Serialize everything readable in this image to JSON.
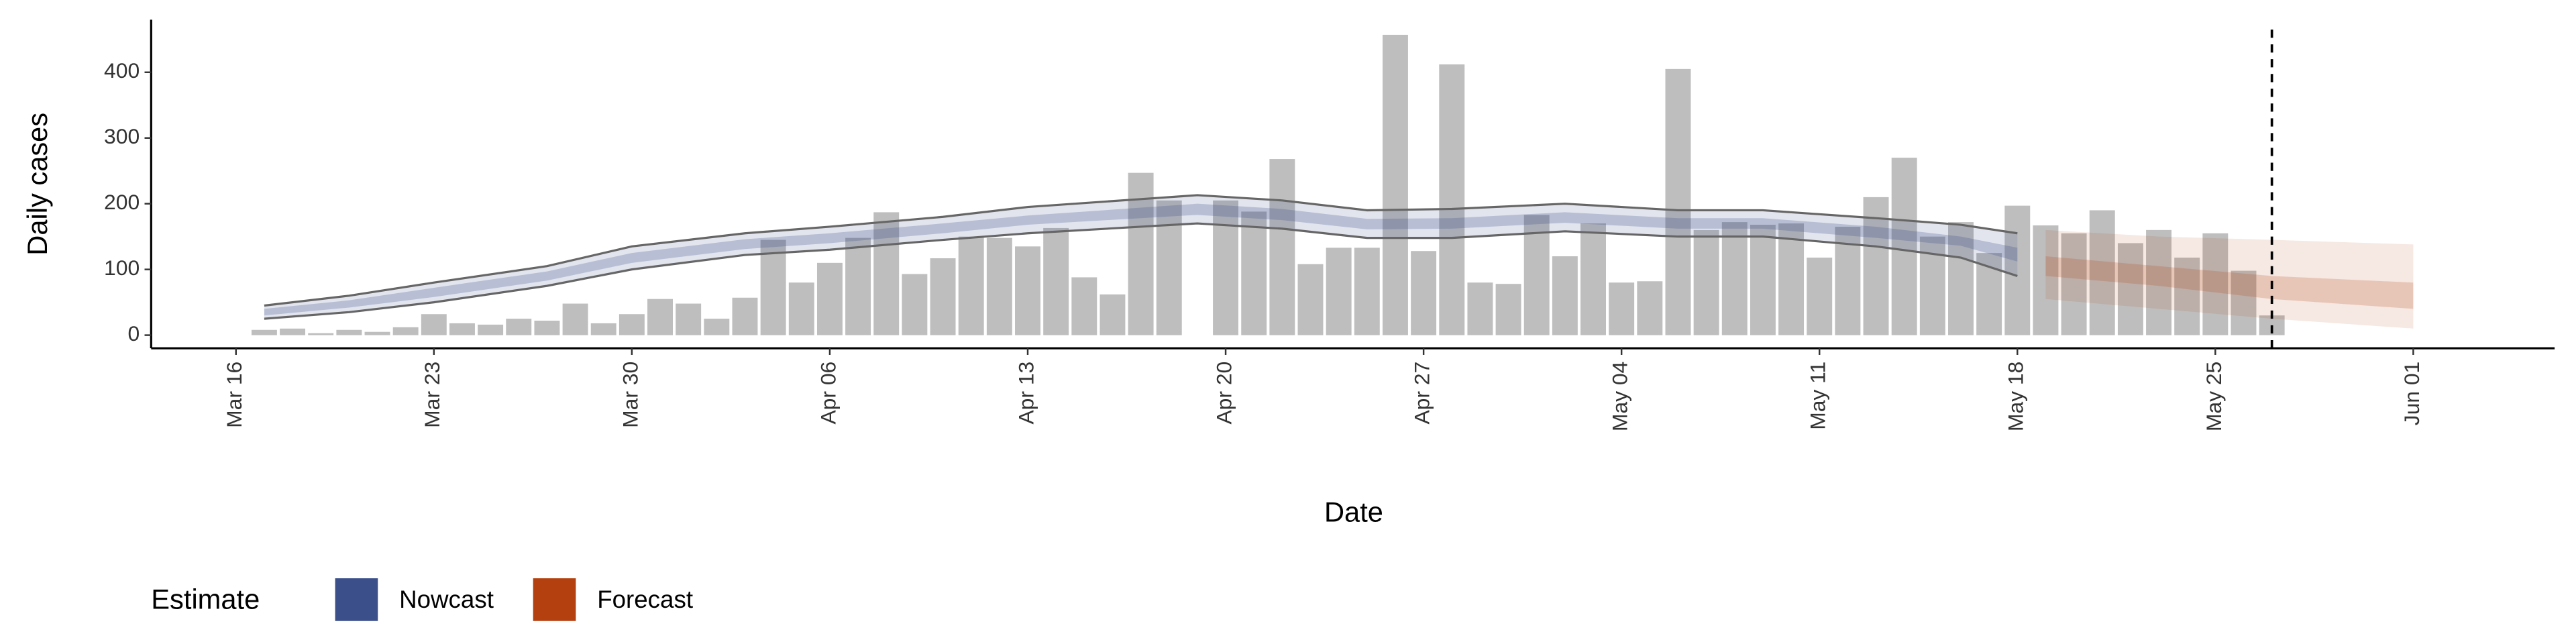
{
  "chart_data": {
    "type": "bar",
    "x_label": "Date",
    "y_label": "Daily cases",
    "x": [
      "Mar 17",
      "Mar 18",
      "Mar 19",
      "Mar 20",
      "Mar 21",
      "Mar 22",
      "Mar 23",
      "Mar 24",
      "Mar 25",
      "Mar 26",
      "Mar 27",
      "Mar 28",
      "Mar 29",
      "Mar 30",
      "Mar 31",
      "Apr 01",
      "Apr 02",
      "Apr 03",
      "Apr 04",
      "Apr 05",
      "Apr 06",
      "Apr 07",
      "Apr 08",
      "Apr 09",
      "Apr 10",
      "Apr 11",
      "Apr 12",
      "Apr 13",
      "Apr 14",
      "Apr 15",
      "Apr 16",
      "Apr 17",
      "Apr 18",
      "Apr 19",
      "Apr 20",
      "Apr 21",
      "Apr 22",
      "Apr 23",
      "Apr 24",
      "Apr 25",
      "Apr 26",
      "Apr 27",
      "Apr 28",
      "Apr 29",
      "Apr 30",
      "May 01",
      "May 02",
      "May 03",
      "May 04",
      "May 05",
      "May 06",
      "May 07",
      "May 08",
      "May 09",
      "May 10",
      "May 11",
      "May 12",
      "May 13",
      "May 14",
      "May 15",
      "May 16",
      "May 17",
      "May 18",
      "May 19",
      "May 20",
      "May 21",
      "May 22",
      "May 23",
      "May 24",
      "May 25",
      "May 26",
      "May 27"
    ],
    "values": [
      8,
      10,
      3,
      8,
      5,
      12,
      32,
      18,
      16,
      25,
      22,
      48,
      18,
      32,
      55,
      48,
      25,
      57,
      145,
      80,
      110,
      148,
      187,
      93,
      117,
      150,
      148,
      135,
      163,
      88,
      62,
      247,
      205,
      null,
      205,
      188,
      268,
      108,
      133,
      133,
      457,
      128,
      412,
      80,
      78,
      183,
      120,
      170,
      80,
      82,
      405,
      160,
      172,
      168,
      170,
      118,
      165,
      210,
      270,
      150,
      172,
      125,
      197,
      167,
      155,
      190,
      140,
      160,
      118,
      155,
      98,
      30
    ],
    "color": "#bebebe",
    "xlim": [
      "Mar 13",
      "Jun 06"
    ],
    "xticks": [
      "Mar 16",
      "Mar 23",
      "Mar 30",
      "Apr 06",
      "Apr 13",
      "Apr 20",
      "Apr 27",
      "May 04",
      "May 11",
      "May 18",
      "May 25",
      "Jun 01"
    ],
    "ylim": [
      -20,
      480
    ],
    "yticks": [
      0,
      100,
      200,
      300,
      400
    ],
    "vline": "May 27",
    "legend_title": "Estimate",
    "estimates": [
      {
        "name": "Nowcast",
        "color": "#3b4f8b",
        "x": [
          "Mar 17",
          "Mar 20",
          "Mar 23",
          "Mar 27",
          "Mar 30",
          "Apr 03",
          "Apr 06",
          "Apr 10",
          "Apr 13",
          "Apr 17",
          "Apr 19",
          "Apr 22",
          "Apr 25",
          "Apr 28",
          "May 02",
          "May 06",
          "May 09",
          "May 13",
          "May 16",
          "May 18"
        ],
        "upper90": [
          45,
          60,
          80,
          105,
          135,
          155,
          165,
          180,
          195,
          207,
          213,
          205,
          190,
          192,
          200,
          190,
          190,
          178,
          168,
          155
        ],
        "lower90": [
          25,
          35,
          50,
          75,
          100,
          122,
          130,
          145,
          155,
          165,
          170,
          162,
          148,
          148,
          158,
          150,
          150,
          135,
          118,
          90
        ],
        "upper50": [
          40,
          53,
          72,
          97,
          125,
          146,
          155,
          170,
          182,
          194,
          200,
          192,
          177,
          178,
          187,
          178,
          178,
          165,
          150,
          133
        ],
        "lower50": [
          30,
          42,
          58,
          83,
          110,
          131,
          140,
          155,
          168,
          178,
          183,
          175,
          161,
          162,
          171,
          162,
          162,
          148,
          136,
          112
        ]
      },
      {
        "name": "Forecast",
        "color": "#b5400f",
        "x": [
          "May 19",
          "May 23",
          "May 27",
          "Jun 01"
        ],
        "upper90": [
          160,
          150,
          145,
          138
        ],
        "lower90": [
          55,
          40,
          25,
          10
        ],
        "upper50": [
          120,
          105,
          90,
          80
        ],
        "lower50": [
          90,
          75,
          55,
          40
        ]
      }
    ]
  }
}
